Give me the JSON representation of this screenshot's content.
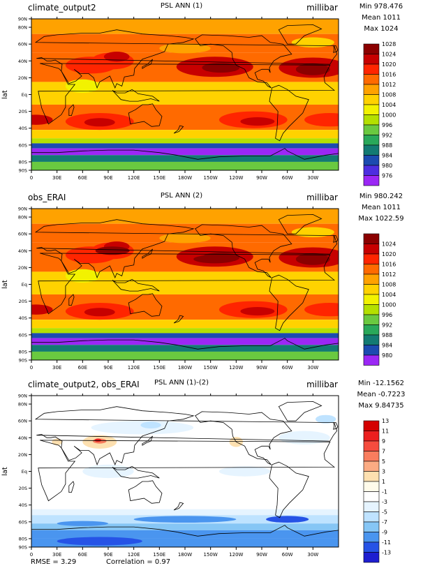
{
  "panels": [
    {
      "left_label": "climate_output2",
      "title": "PSL ANN (1)",
      "units": "millibar",
      "min_label": "Min 978.476",
      "mean_label": "Mean 1011",
      "max_label": "Max 1024",
      "y_label": "lat",
      "colorbar": {
        "levels": [
          "1028",
          "1024",
          "1020",
          "1016",
          "1012",
          "1008",
          "1004",
          "1000",
          "996",
          "992",
          "988",
          "984",
          "980",
          "976"
        ],
        "colors": [
          "#8b0000",
          "#c70000",
          "#ff2500",
          "#ff6a00",
          "#ffa200",
          "#ffd200",
          "#f2f200",
          "#b4e000",
          "#6ac940",
          "#29a85a",
          "#137a73",
          "#1c4bb0",
          "#4d2ee0",
          "#9b27f5"
        ]
      }
    },
    {
      "left_label": "obs_ERAI",
      "title": "PSL ANN (2)",
      "units": "millibar",
      "min_label": "Min 980.242",
      "mean_label": "Mean 1011",
      "max_label": "Max 1022.59",
      "y_label": "lat",
      "colorbar": {
        "levels": [
          "1024",
          "1020",
          "1016",
          "1012",
          "1008",
          "1004",
          "1000",
          "996",
          "992",
          "988",
          "984",
          "980"
        ],
        "colors": [
          "#8b0000",
          "#c70000",
          "#ff2500",
          "#ff6a00",
          "#ffa200",
          "#ffd200",
          "#f2f200",
          "#b4e000",
          "#6ac940",
          "#29a85a",
          "#137a73",
          "#1c4bb0",
          "#9b27f5"
        ]
      }
    },
    {
      "left_label": "climate_output2, obs_ERAI",
      "title": "PSL ANN (1)-(2)",
      "units": "millibar",
      "min_label": "Min -12.1562",
      "mean_label": "Mean -0.7223",
      "max_label": "Max 9.84735",
      "y_label": "lat",
      "colorbar": {
        "levels": [
          "13",
          "11",
          "9",
          "7",
          "5",
          "3",
          "1",
          "-1",
          "-3",
          "-5",
          "-7",
          "-9",
          "-11",
          "-13"
        ],
        "colors": [
          "#d40000",
          "#ec1f1f",
          "#f54c3e",
          "#f97d5e",
          "#fbab83",
          "#fde0b0",
          "#fffbea",
          "#ffffff",
          "#e6f4ff",
          "#bfe3ff",
          "#86c6f5",
          "#4a95ef",
          "#2653e6",
          "#1e1ed0"
        ]
      }
    }
  ],
  "map": {
    "lon_ticks": [
      "0",
      "30E",
      "60E",
      "90E",
      "120E",
      "150E",
      "180W",
      "150W",
      "120W",
      "90W",
      "60W",
      "30W"
    ],
    "lat_ticks": [
      "90N",
      "80N",
      "60N",
      "40N",
      "20N",
      "Eq",
      "20S",
      "40S",
      "60S",
      "80S",
      "90S"
    ]
  },
  "footer": {
    "rmse": "RMSE = 3.29",
    "correlation": "Correlation = 0.97"
  }
}
